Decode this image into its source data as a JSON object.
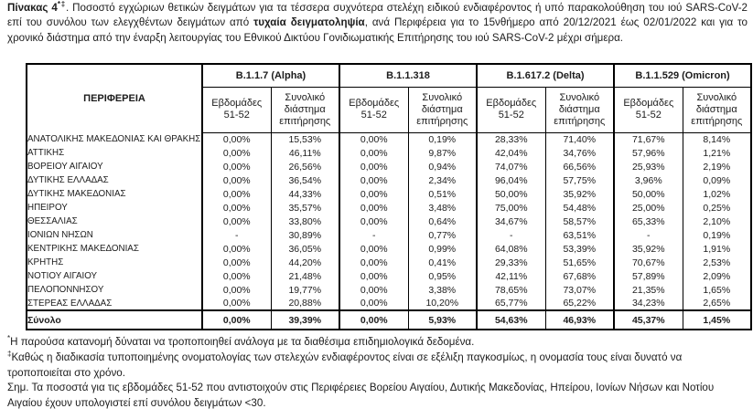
{
  "title": {
    "bold_label": "Πίνακας 4",
    "superscript": "*‡",
    "text_mid": ". Ποσοστό εγχώριων θετικών δειγμάτων για τα τέσσερα συχνότερα στελέχη ειδικού ενδιαφέροντος ή υπό παρακολούθηση του ιού SARS-CoV-2 επί του συνόλου των ελεγχθέντων δειγμάτων από ",
    "bold_phrase": "τυχαία δειγματοληψία",
    "text_tail": ", ανά Περιφέρεια για το 15νθήμερο από 20/12/2021 έως 02/01/2022 και για το χρονικό διάστημα από την έναρξη λειτουργίας του Εθνικού Δικτύου Γονιδιωματικής Επιτήρησης του ιού SARS-CoV-2 μέχρι σήμερα."
  },
  "table": {
    "region_header": "ΠΕΡΙΦΕΡΕΙΑ",
    "groups": [
      {
        "label": "B.1.1.7 (Alpha)"
      },
      {
        "label": "B.1.1.318"
      },
      {
        "label": "B.1.617.2 (Delta)"
      },
      {
        "label": "B.1.1.529 (Omicron)"
      }
    ],
    "sub_week": "Εβδομάδες 51-52",
    "sub_total": "Συνολικό διάστημα επιτήρησης",
    "rows": [
      {
        "region": "ΑΝΑΤΟΛΙΚΗΣ ΜΑΚΕΔΟΝΙΑΣ ΚΑΙ ΘΡΑΚΗΣ",
        "values": [
          "0,00%",
          "15,53%",
          "0,00%",
          "0,19%",
          "28,33%",
          "71,40%",
          "71,67%",
          "8,14%"
        ]
      },
      {
        "region": "ΑΤΤΙΚΗΣ",
        "values": [
          "0,00%",
          "46,11%",
          "0,00%",
          "9,87%",
          "42,04%",
          "34,76%",
          "57,96%",
          "1,21%"
        ]
      },
      {
        "region": "ΒΟΡΕΙΟΥ ΑΙΓΑΙΟΥ",
        "values": [
          "0,00%",
          "26,56%",
          "0,00%",
          "0,94%",
          "74,07%",
          "66,56%",
          "25,93%",
          "2,19%"
        ]
      },
      {
        "region": "ΔΥΤΙΚΗΣ ΕΛΛΑΔΑΣ",
        "values": [
          "0,00%",
          "36,54%",
          "0,00%",
          "2,34%",
          "96,04%",
          "57,75%",
          "3,96%",
          "0,09%"
        ]
      },
      {
        "region": "ΔΥΤΙΚΗΣ ΜΑΚΕΔΟΝΙΑΣ",
        "values": [
          "0,00%",
          "44,33%",
          "0,00%",
          "0,51%",
          "50,00%",
          "35,92%",
          "50,00%",
          "1,02%"
        ]
      },
      {
        "region": "ΗΠΕΙΡΟΥ",
        "values": [
          "0,00%",
          "35,57%",
          "0,00%",
          "3,48%",
          "75,00%",
          "54,48%",
          "25,00%",
          "0,25%"
        ]
      },
      {
        "region": "ΘΕΣΣΑΛΙΑΣ",
        "values": [
          "0,00%",
          "33,80%",
          "0,00%",
          "0,64%",
          "34,67%",
          "58,57%",
          "65,33%",
          "2,10%"
        ]
      },
      {
        "region": "ΙΟΝΙΩΝ ΝΗΣΩΝ",
        "values": [
          "-",
          "30,89%",
          "-",
          "0,77%",
          "-",
          "63,51%",
          "-",
          "0,19%"
        ]
      },
      {
        "region": "ΚΕΝΤΡΙΚΗΣ ΜΑΚΕΔΟΝΙΑΣ",
        "values": [
          "0,00%",
          "36,05%",
          "0,00%",
          "0,99%",
          "64,08%",
          "53,39%",
          "35,92%",
          "1,91%"
        ]
      },
      {
        "region": "ΚΡΗΤΗΣ",
        "values": [
          "0,00%",
          "44,20%",
          "0,00%",
          "0,41%",
          "29,33%",
          "51,65%",
          "70,67%",
          "2,53%"
        ]
      },
      {
        "region": "ΝΟΤΙΟΥ ΑΙΓΑΙΟΥ",
        "values": [
          "0,00%",
          "21,48%",
          "0,00%",
          "0,95%",
          "42,11%",
          "67,68%",
          "57,89%",
          "2,09%"
        ]
      },
      {
        "region": "ΠΕΛΟΠΟΝΝΗΣΟΥ",
        "values": [
          "0,00%",
          "19,77%",
          "0,00%",
          "3,38%",
          "78,65%",
          "73,07%",
          "21,35%",
          "1,65%"
        ]
      },
      {
        "region": "ΣΤΕΡΕΑΣ ΕΛΛΑΔΑΣ",
        "values": [
          "0,00%",
          "20,88%",
          "0,00%",
          "10,20%",
          "65,77%",
          "65,22%",
          "34,23%",
          "2,65%"
        ]
      }
    ],
    "total_row": {
      "region": "Σύνολο",
      "values": [
        "0,00%",
        "39,39%",
        "0,00%",
        "5,93%",
        "54,63%",
        "46,93%",
        "45,37%",
        "1,45%"
      ]
    }
  },
  "footnotes": [
    {
      "sup": "*",
      "text": "Η παρούσα κατανομή δύναται να τροποποιηθεί ανάλογα με τα διαθέσιμα επιδημιολογικά δεδομένα."
    },
    {
      "sup": "‡",
      "text": "Καθώς η διαδικασία τυποποιημένης ονοματολογίας των στελεχών ενδιαφέροντος είναι σε εξέλιξη παγκοσμίως, η ονομασία τους είναι δυνατό να τροποποιείται στο χρόνο."
    },
    {
      "sup": "",
      "text": "Σημ. Τα ποσοστά για τις εβδομάδες 51-52 που αντιστοιχούν στις Περιφέρειες Βορείου Αιγαίου, Δυτικής Μακεδονίας, Ηπείρου, Ιονίων Νήσων και Νοτίου Αιγαίου έχουν υπολογιστεί επί συνόλου δειγμάτων <30."
    }
  ],
  "colors": {
    "text": "#1c1c1c",
    "border": "#000000",
    "background": "#ffffff"
  }
}
